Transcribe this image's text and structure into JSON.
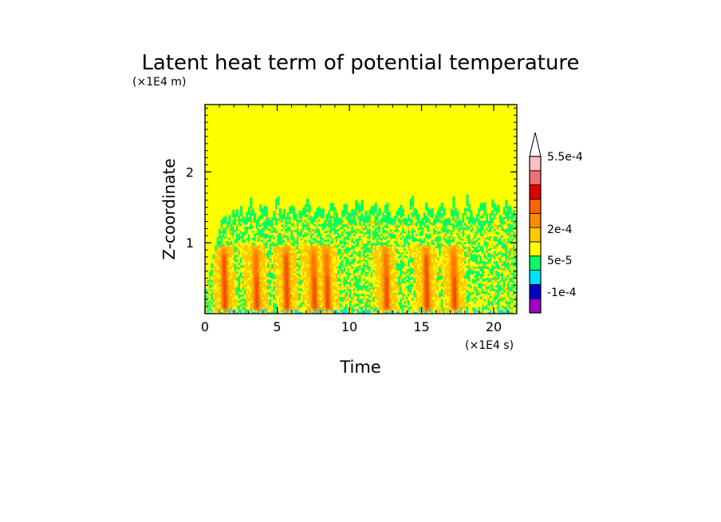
{
  "chart_data": {
    "type": "heatmap",
    "title": "Latent heat term of potential temperature",
    "xlabel": "Time",
    "ylabel": "Z-coordinate",
    "x_unit": "(×1E4 s)",
    "y_unit": "(×1E4 m)",
    "xlim": [
      0,
      21.6
    ],
    "ylim": [
      0,
      2.95
    ],
    "xticks": [
      0,
      5,
      10,
      15,
      20
    ],
    "xtick_labels": [
      "0",
      "5",
      "10",
      "15",
      "20"
    ],
    "yticks": [
      1,
      2
    ],
    "ytick_labels": [
      "1",
      "2"
    ],
    "background_value_color": "#ffff00",
    "colorbar": {
      "levels": [
        "-1e-4",
        "5e-5",
        "2e-4",
        "5.5e-4"
      ],
      "colors": [
        "#a000c0",
        "#0000c8",
        "#00e0ff",
        "#00ff64",
        "#ffff00",
        "#ffc800",
        "#ff8c00",
        "#ff6400",
        "#e00000",
        "#f07070",
        "#ffc0c0"
      ],
      "extend": "max"
    },
    "features": {
      "active_layer_top_z": 1.4,
      "strong_heating_bursts_x": [
        1.4,
        3.6,
        5.7,
        7.6,
        8.5,
        12.6,
        15.4,
        17.3
      ]
    }
  }
}
